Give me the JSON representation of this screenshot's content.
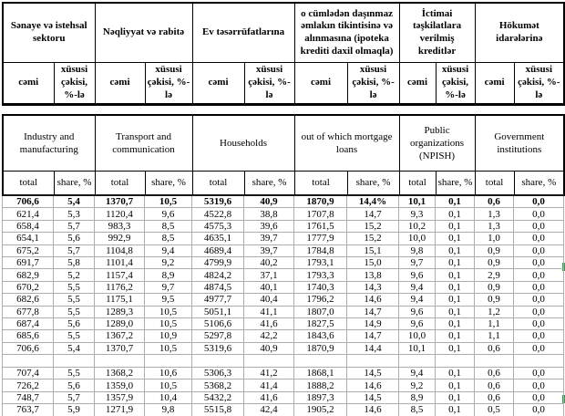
{
  "header_az": {
    "groups": [
      "Sənaye və istehsal sektoru",
      "Nəqliyyat və rabitə",
      "Ev təsərrüfatlarına",
      "o cümlədən daşınmaz əmlakın tikintisinə və alınmasına (ipoteka krediti daxil olmaqla)",
      "İctimai təşkilatlara verilmiş kreditlər",
      "Hökumət idarələrinə"
    ],
    "total_label": "cəmi",
    "share_label": "xüsusi çəkisi, %-lə"
  },
  "header_en": {
    "groups": [
      "Industry and manufacturing",
      "Transport and communication",
      "Households",
      "out of which mortgage loans",
      "Public organizations (NPISH)",
      "Government institutions"
    ],
    "total_label": "total",
    "share_label": "share, %"
  },
  "table": {
    "rows": [
      [
        "706,6",
        "5,4",
        "1370,7",
        "10,5",
        "5319,6",
        "40,9",
        "1870,9",
        "14,4%",
        "10,1",
        "0,1",
        "0,6",
        "0,0"
      ],
      [
        "621,4",
        "5,3",
        "1120,4",
        "9,6",
        "4522,8",
        "38,8",
        "1707,8",
        "14,7",
        "9,3",
        "0,1",
        "1,3",
        "0,0"
      ],
      [
        "658,4",
        "5,7",
        "983,3",
        "8,5",
        "4575,3",
        "39,6",
        "1761,5",
        "15,2",
        "10,2",
        "0,1",
        "1,3",
        "0,0"
      ],
      [
        "654,1",
        "5,6",
        "992,9",
        "8,5",
        "4635,1",
        "39,7",
        "1777,9",
        "15,2",
        "10,0",
        "0,1",
        "1,0",
        "0,0"
      ],
      [
        "675,2",
        "5,7",
        "1104,8",
        "9,4",
        "4689,4",
        "39,7",
        "1784,8",
        "15,1",
        "9,8",
        "0,1",
        "0,9",
        "0,0"
      ],
      [
        "691,7",
        "5,8",
        "1101,4",
        "9,2",
        "4799,9",
        "40,2",
        "1793,1",
        "15,0",
        "9,7",
        "0,1",
        "0,9",
        "0,0"
      ],
      [
        "682,9",
        "5,2",
        "1157,4",
        "8,9",
        "4824,2",
        "37,1",
        "1793,3",
        "13,8",
        "9,6",
        "0,1",
        "2,9",
        "0,0"
      ],
      [
        "670,2",
        "5,5",
        "1176,2",
        "9,7",
        "4874,5",
        "40,1",
        "1740,3",
        "14,3",
        "9,4",
        "0,1",
        "0,9",
        "0,0"
      ],
      [
        "682,6",
        "5,5",
        "1175,1",
        "9,5",
        "4977,7",
        "40,4",
        "1796,2",
        "14,6",
        "9,4",
        "0,1",
        "0,9",
        "0,0"
      ],
      [
        "677,8",
        "5,5",
        "1289,3",
        "10,5",
        "5051,1",
        "41,1",
        "1807,0",
        "14,7",
        "9,6",
        "0,1",
        "1,2",
        "0,0"
      ],
      [
        "687,4",
        "5,6",
        "1289,0",
        "10,5",
        "5106,6",
        "41,6",
        "1827,5",
        "14,9",
        "9,6",
        "0,1",
        "1,1",
        "0,0"
      ],
      [
        "685,6",
        "5,5",
        "1367,2",
        "10,9",
        "5297,8",
        "42,2",
        "1843,6",
        "14,7",
        "10,0",
        "0,1",
        "1,1",
        "0,0"
      ],
      [
        "706,6",
        "5,4",
        "1370,7",
        "10,5",
        "5319,6",
        "40,9",
        "1870,9",
        "14,4",
        "10,1",
        "0,1",
        "0,6",
        "0,0"
      ],
      [
        "707,4",
        "5,5",
        "1368,2",
        "10,6",
        "5306,3",
        "41,2",
        "1868,1",
        "14,5",
        "9,4",
        "0,1",
        "0,6",
        "0,0"
      ],
      [
        "726,2",
        "5,6",
        "1359,0",
        "10,5",
        "5368,2",
        "41,4",
        "1888,2",
        "14,6",
        "9,2",
        "0,1",
        "0,6",
        "0,0"
      ],
      [
        "748,7",
        "5,7",
        "1357,9",
        "10,4",
        "5432,2",
        "41,6",
        "1897,3",
        "14,5",
        "8,9",
        "0,1",
        "0,6",
        "0,0"
      ],
      [
        "763,7",
        "5,9",
        "1271,9",
        "9,8",
        "5515,8",
        "42,4",
        "1905,2",
        "14,6",
        "8,5",
        "0,1",
        "0,5",
        "0,0"
      ]
    ],
    "bold_row_index": 0,
    "blank_row_after_index": 12
  },
  "markers": {
    "color": "#2fa04a"
  }
}
